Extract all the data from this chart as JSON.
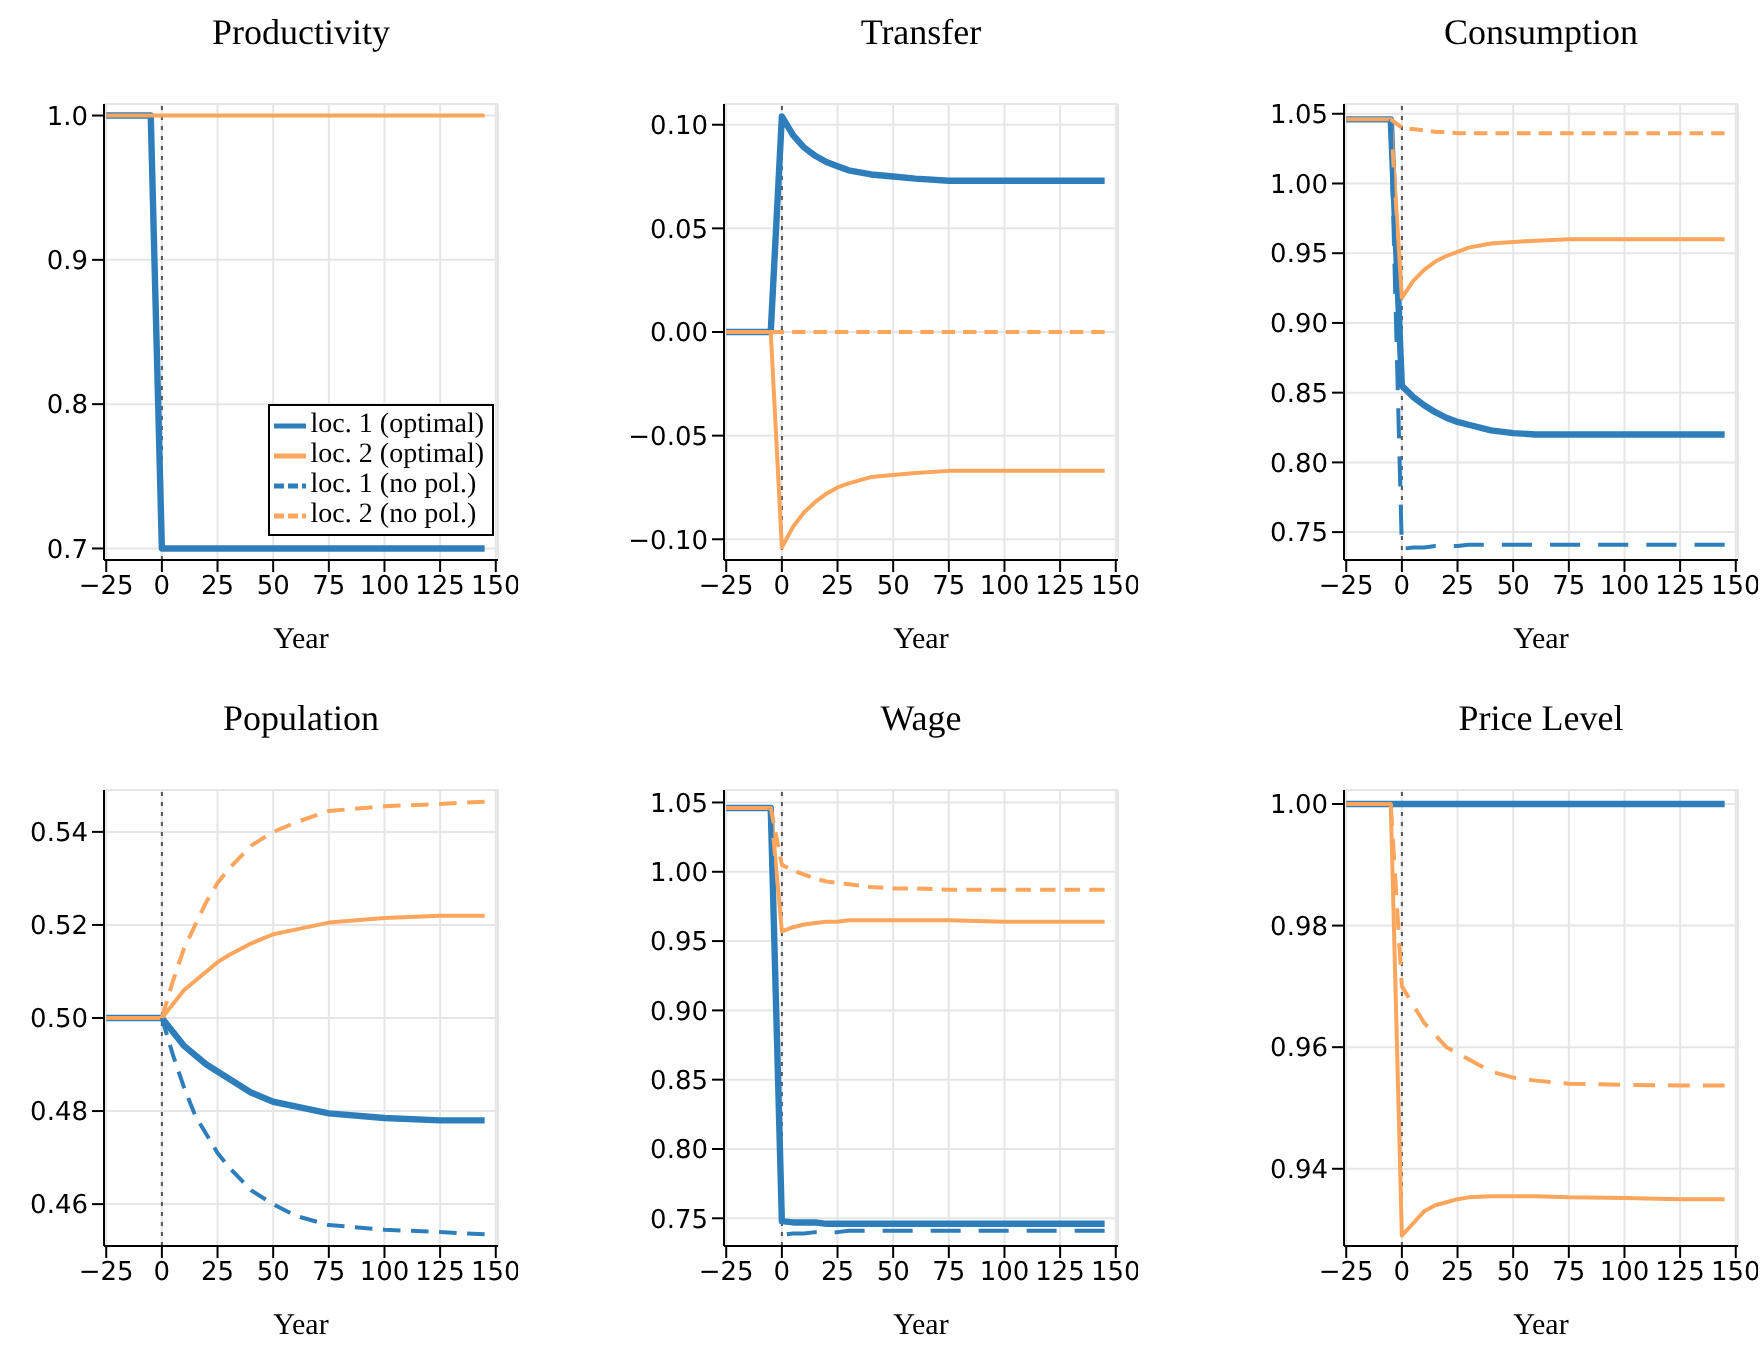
{
  "chart_data": [
    {
      "type": "line",
      "title": "Productivity",
      "xlabel": "Year",
      "x": [
        -25,
        -5,
        0,
        5,
        10,
        15,
        20,
        25,
        30,
        40,
        50,
        60,
        75,
        100,
        125,
        145
      ],
      "xlim": [
        -26,
        151
      ],
      "xticks": [
        -25,
        0,
        25,
        50,
        75,
        100,
        125,
        150
      ],
      "ylim": [
        0.692,
        1.008
      ],
      "yticks": [
        {
          "value": 0.7,
          "label": "0.7"
        },
        {
          "value": 0.8,
          "label": "0.8"
        },
        {
          "value": 0.9,
          "label": "0.9"
        },
        {
          "value": 1.0,
          "label": "1.0"
        }
      ],
      "grid": true,
      "legend": "bottom right",
      "marker": "none",
      "ref_lines": [
        {
          "axis": "x",
          "value": 0,
          "color": "#555555",
          "line_style": "dotted"
        }
      ],
      "series": [
        {
          "name": "loc. 1 (optimal)",
          "color": "#2f7ebc",
          "line_style": "solid",
          "values": [
            1,
            1,
            0.7,
            0.7,
            0.7,
            0.7,
            0.7,
            0.7,
            0.7,
            0.7,
            0.7,
            0.7,
            0.7,
            0.7,
            0.7,
            0.7
          ]
        },
        {
          "name": "loc. 2 (optimal)",
          "color": "#fca55d",
          "line_style": "solid",
          "values": [
            1,
            1,
            1,
            1,
            1,
            1,
            1,
            1,
            1,
            1,
            1,
            1,
            1,
            1,
            1,
            1
          ]
        },
        {
          "name": "loc. 1 (no pol.)",
          "color": "#2f7ebc",
          "line_style": "dashed",
          "values": [
            null,
            null,
            null,
            null,
            null,
            null,
            null,
            null,
            null,
            null,
            null,
            null,
            null,
            null,
            null,
            null
          ]
        },
        {
          "name": "loc. 2 (no pol.)",
          "color": "#fca55d",
          "line_style": "dashed",
          "values": [
            null,
            null,
            null,
            null,
            null,
            null,
            null,
            null,
            null,
            null,
            null,
            null,
            null,
            null,
            null,
            null
          ]
        }
      ]
    },
    {
      "type": "line",
      "title": "Transfer",
      "xlabel": "Year",
      "x": [
        -25,
        -5,
        0,
        5,
        10,
        15,
        20,
        25,
        30,
        40,
        50,
        60,
        75,
        100,
        125,
        145
      ],
      "xlim": [
        -26,
        151
      ],
      "xticks": [
        -25,
        0,
        25,
        50,
        75,
        100,
        125,
        150
      ],
      "ylim": [
        -0.11,
        0.11
      ],
      "yticks": [
        {
          "value": -0.1,
          "label": "−0.10"
        },
        {
          "value": -0.05,
          "label": "−0.05"
        },
        {
          "value": 0,
          "label": "0.00"
        },
        {
          "value": 0.05,
          "label": "0.05"
        },
        {
          "value": 0.1,
          "label": "0.10"
        }
      ],
      "grid": true,
      "legend": false,
      "marker": "none",
      "ref_lines": [
        {
          "axis": "x",
          "value": 0,
          "color": "#555555",
          "line_style": "dotted"
        }
      ],
      "series": [
        {
          "color": "#2f7ebc",
          "line_style": "solid",
          "values": [
            0,
            0,
            0.104,
            0.095,
            0.089,
            0.085,
            0.082,
            0.08,
            0.078,
            0.076,
            0.075,
            0.074,
            0.073,
            0.073,
            0.073,
            0.073
          ]
        },
        {
          "color": "#fca55d",
          "line_style": "solid",
          "values": [
            0,
            0,
            -0.104,
            -0.094,
            -0.087,
            -0.082,
            -0.078,
            -0.075,
            -0.073,
            -0.07,
            -0.069,
            -0.068,
            -0.067,
            -0.067,
            -0.067,
            -0.067
          ]
        },
        {
          "color": "#2f7ebc",
          "line_style": "dashed",
          "values": [
            null,
            null,
            null,
            null,
            null,
            null,
            null,
            null,
            null,
            null,
            null,
            null,
            null,
            null,
            null,
            null
          ]
        },
        {
          "color": "#fca55d",
          "line_style": "dashed",
          "values": [
            null,
            0,
            0,
            0,
            0,
            0,
            0,
            0,
            0,
            0,
            0,
            0,
            0,
            0,
            0,
            0
          ]
        }
      ]
    },
    {
      "type": "line",
      "title": "Consumption",
      "xlabel": "Year",
      "x": [
        -25,
        -5,
        0,
        5,
        10,
        15,
        20,
        25,
        30,
        40,
        50,
        60,
        75,
        100,
        125,
        145
      ],
      "xlim": [
        -26,
        151
      ],
      "xticks": [
        -25,
        0,
        25,
        50,
        75,
        100,
        125,
        150
      ],
      "ylim": [
        0.73,
        1.057
      ],
      "yticks": [
        {
          "value": 0.75,
          "label": "0.75"
        },
        {
          "value": 0.8,
          "label": "0.80"
        },
        {
          "value": 0.85,
          "label": "0.85"
        },
        {
          "value": 0.9,
          "label": "0.90"
        },
        {
          "value": 0.95,
          "label": "0.95"
        },
        {
          "value": 1.0,
          "label": "1.00"
        },
        {
          "value": 1.05,
          "label": "1.05"
        }
      ],
      "grid": true,
      "legend": false,
      "marker": "none",
      "ref_lines": [
        {
          "axis": "x",
          "value": 0,
          "color": "#555555",
          "line_style": "dotted"
        }
      ],
      "series": [
        {
          "color": "#2f7ebc",
          "line_style": "solid",
          "values": [
            1.046,
            1.046,
            0.855,
            0.847,
            0.841,
            0.836,
            0.832,
            0.829,
            0.827,
            0.823,
            0.821,
            0.82,
            0.82,
            0.82,
            0.82,
            0.82
          ]
        },
        {
          "color": "#fca55d",
          "line_style": "solid",
          "values": [
            1.046,
            1.046,
            0.918,
            0.93,
            0.938,
            0.944,
            0.948,
            0.951,
            0.954,
            0.957,
            0.958,
            0.959,
            0.96,
            0.96,
            0.96,
            0.96
          ]
        },
        {
          "color": "#2f7ebc",
          "line_style": "dashed",
          "values": [
            null,
            1.046,
            0.738,
            0.739,
            0.739,
            0.74,
            0.74,
            0.74,
            0.741,
            0.741,
            0.741,
            0.741,
            0.741,
            0.741,
            0.741,
            0.741
          ]
        },
        {
          "color": "#fca55d",
          "line_style": "dashed",
          "values": [
            null,
            1.046,
            1.04,
            1.039,
            1.038,
            1.037,
            1.037,
            1.036,
            1.036,
            1.036,
            1.036,
            1.036,
            1.036,
            1.036,
            1.036,
            1.036
          ]
        }
      ]
    },
    {
      "type": "line",
      "title": "Population",
      "xlabel": "Year",
      "x": [
        -25,
        -5,
        0,
        5,
        10,
        15,
        20,
        25,
        30,
        40,
        50,
        60,
        75,
        100,
        125,
        145
      ],
      "xlim": [
        -26,
        151
      ],
      "xticks": [
        -25,
        0,
        25,
        50,
        75,
        100,
        125,
        150
      ],
      "ylim": [
        0.451,
        0.549
      ],
      "yticks": [
        {
          "value": 0.46,
          "label": "0.46"
        },
        {
          "value": 0.48,
          "label": "0.48"
        },
        {
          "value": 0.5,
          "label": "0.50"
        },
        {
          "value": 0.52,
          "label": "0.52"
        },
        {
          "value": 0.54,
          "label": "0.54"
        }
      ],
      "grid": true,
      "legend": false,
      "marker": "none",
      "ref_lines": [
        {
          "axis": "x",
          "value": 0,
          "color": "#555555",
          "line_style": "dotted"
        }
      ],
      "series": [
        {
          "color": "#2f7ebc",
          "line_style": "solid",
          "values": [
            0.5,
            0.5,
            0.5,
            0.497,
            0.494,
            0.492,
            0.49,
            0.4885,
            0.487,
            0.484,
            0.482,
            0.481,
            0.4795,
            0.4785,
            0.478,
            0.478
          ]
        },
        {
          "color": "#fca55d",
          "line_style": "solid",
          "values": [
            0.5,
            0.5,
            0.5,
            0.503,
            0.506,
            0.508,
            0.51,
            0.512,
            0.5135,
            0.516,
            0.518,
            0.519,
            0.5205,
            0.5215,
            0.522,
            0.522
          ]
        },
        {
          "color": "#2f7ebc",
          "line_style": "dashed",
          "values": [
            null,
            null,
            0.5,
            0.492,
            0.485,
            0.479,
            0.475,
            0.471,
            0.468,
            0.463,
            0.46,
            0.4575,
            0.4555,
            0.4545,
            0.454,
            0.4535
          ]
        },
        {
          "color": "#fca55d",
          "line_style": "dashed",
          "values": [
            null,
            null,
            0.5,
            0.508,
            0.515,
            0.52,
            0.525,
            0.529,
            0.532,
            0.537,
            0.54,
            0.542,
            0.5445,
            0.5455,
            0.546,
            0.5465
          ]
        }
      ]
    },
    {
      "type": "line",
      "title": "Wage",
      "xlabel": "Year",
      "x": [
        -25,
        -5,
        0,
        5,
        10,
        15,
        20,
        25,
        30,
        40,
        50,
        60,
        75,
        100,
        125,
        145
      ],
      "xlim": [
        -26,
        151
      ],
      "xticks": [
        -25,
        0,
        25,
        50,
        75,
        100,
        125,
        150
      ],
      "ylim": [
        0.73,
        1.059
      ],
      "yticks": [
        {
          "value": 0.75,
          "label": "0.75"
        },
        {
          "value": 0.8,
          "label": "0.80"
        },
        {
          "value": 0.85,
          "label": "0.85"
        },
        {
          "value": 0.9,
          "label": "0.90"
        },
        {
          "value": 0.95,
          "label": "0.95"
        },
        {
          "value": 1.0,
          "label": "1.00"
        },
        {
          "value": 1.05,
          "label": "1.05"
        }
      ],
      "grid": true,
      "legend": false,
      "marker": "none",
      "ref_lines": [
        {
          "axis": "x",
          "value": 0,
          "color": "#555555",
          "line_style": "dotted"
        }
      ],
      "series": [
        {
          "color": "#2f7ebc",
          "line_style": "solid",
          "values": [
            1.046,
            1.046,
            0.748,
            0.747,
            0.747,
            0.747,
            0.746,
            0.746,
            0.746,
            0.746,
            0.746,
            0.746,
            0.746,
            0.746,
            0.746,
            0.746
          ]
        },
        {
          "color": "#fca55d",
          "line_style": "solid",
          "values": [
            1.046,
            1.046,
            0.957,
            0.96,
            0.962,
            0.963,
            0.964,
            0.964,
            0.965,
            0.965,
            0.965,
            0.965,
            0.965,
            0.964,
            0.964,
            0.964
          ]
        },
        {
          "color": "#2f7ebc",
          "line_style": "dashed",
          "values": [
            null,
            1.046,
            0.738,
            0.739,
            0.739,
            0.74,
            0.74,
            0.74,
            0.741,
            0.741,
            0.741,
            0.741,
            0.741,
            0.741,
            0.741,
            0.741
          ]
        },
        {
          "color": "#fca55d",
          "line_style": "dashed",
          "values": [
            null,
            1.046,
            1.005,
            1.001,
            0.998,
            0.995,
            0.993,
            0.992,
            0.991,
            0.989,
            0.988,
            0.988,
            0.987,
            0.987,
            0.987,
            0.987
          ]
        }
      ]
    },
    {
      "type": "line",
      "title": "Price Level",
      "xlabel": "Year",
      "x": [
        -25,
        -5,
        0,
        5,
        10,
        15,
        20,
        25,
        30,
        40,
        50,
        60,
        75,
        100,
        125,
        145
      ],
      "xlim": [
        -26,
        151
      ],
      "xticks": [
        -25,
        0,
        25,
        50,
        75,
        100,
        125,
        150
      ],
      "ylim": [
        0.9273,
        1.0023
      ],
      "yticks": [
        {
          "value": 0.94,
          "label": "0.94"
        },
        {
          "value": 0.96,
          "label": "0.96"
        },
        {
          "value": 0.98,
          "label": "0.98"
        },
        {
          "value": 1.0,
          "label": "1.00"
        }
      ],
      "grid": true,
      "legend": false,
      "marker": "none",
      "ref_lines": [
        {
          "axis": "x",
          "value": 0,
          "color": "#555555",
          "line_style": "dotted"
        }
      ],
      "series": [
        {
          "color": "#2f7ebc",
          "line_style": "solid",
          "values": [
            1,
            1,
            1,
            1,
            1,
            1,
            1,
            1,
            1,
            1,
            1,
            1,
            1,
            1,
            1,
            1
          ]
        },
        {
          "color": "#fca55d",
          "line_style": "solid",
          "values": [
            1,
            1,
            0.929,
            0.931,
            0.933,
            0.934,
            0.9345,
            0.935,
            0.9353,
            0.9355,
            0.9355,
            0.9355,
            0.9353,
            0.9352,
            0.935,
            0.935
          ]
        },
        {
          "color": "#2f7ebc",
          "line_style": "dashed",
          "values": [
            null,
            null,
            null,
            null,
            null,
            null,
            null,
            null,
            null,
            null,
            null,
            null,
            null,
            null,
            null,
            null
          ]
        },
        {
          "color": "#fca55d",
          "line_style": "dashed",
          "values": [
            null,
            1,
            0.97,
            0.967,
            0.964,
            0.962,
            0.96,
            0.959,
            0.958,
            0.956,
            0.955,
            0.9545,
            0.954,
            0.9538,
            0.9537,
            0.9537
          ]
        }
      ]
    }
  ]
}
